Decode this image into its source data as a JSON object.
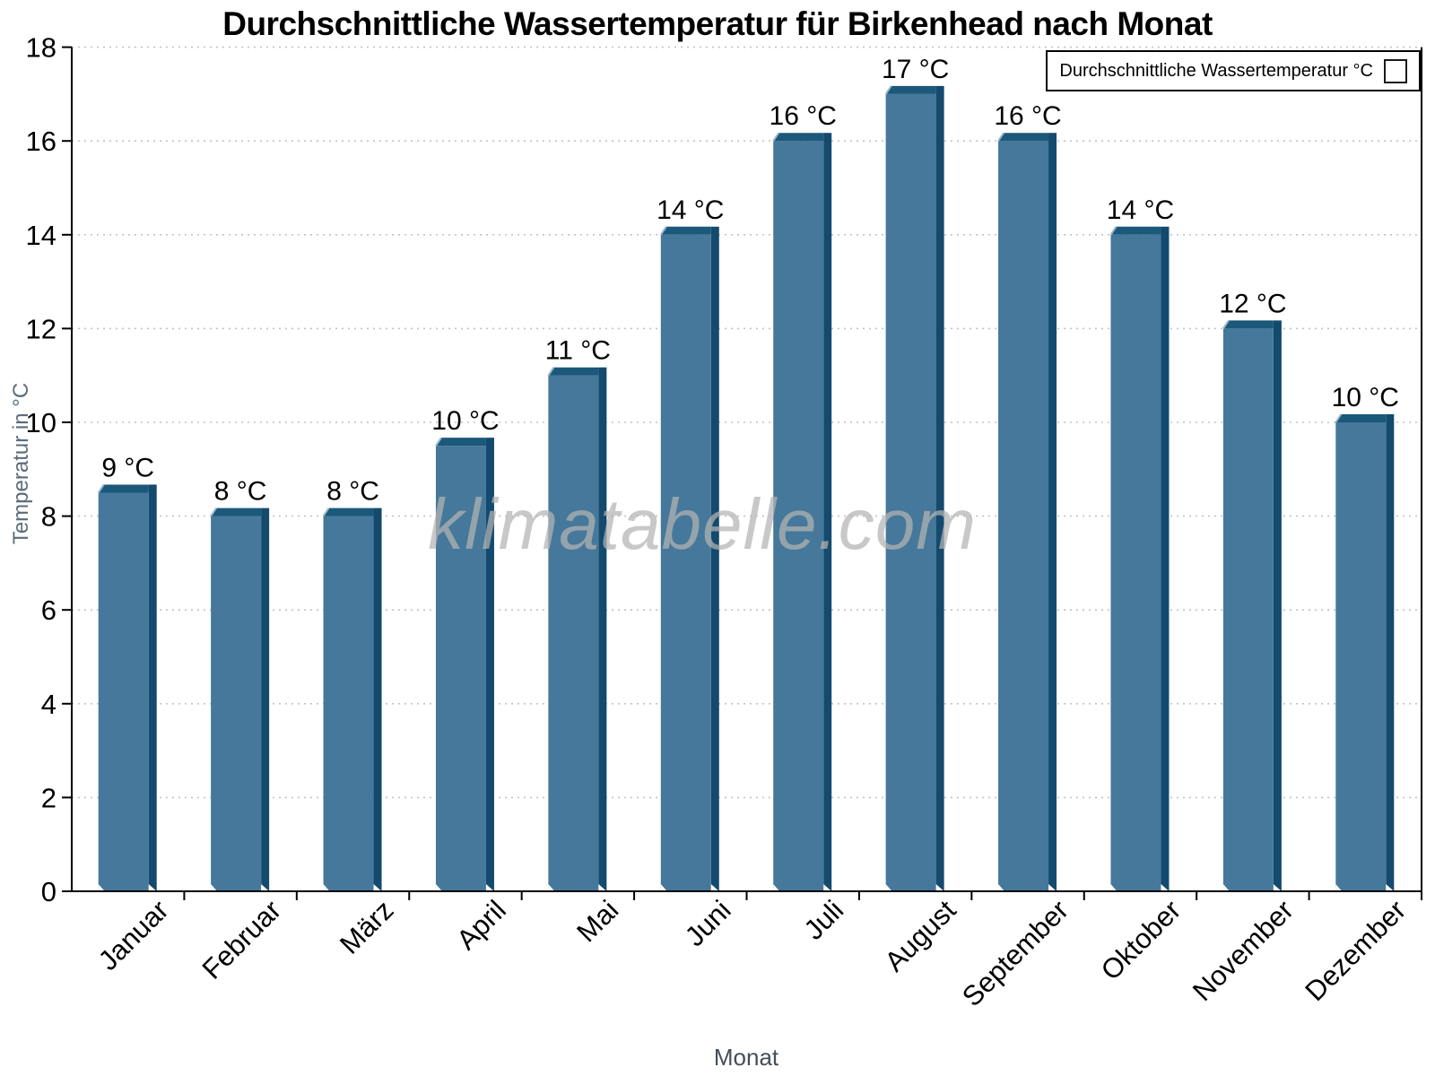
{
  "title": "Durchschnittliche Wassertemperatur für Birkenhead nach Monat",
  "legend": {
    "label": "Durchschnittliche Wassertemperatur °C"
  },
  "watermark": "klimatabelle.com",
  "chart_data": {
    "type": "bar",
    "title": "Durchschnittliche Wassertemperatur für Birkenhead nach Monat",
    "xlabel": "Monat",
    "ylabel": "Temperatur in °C",
    "categories": [
      "Januar",
      "Februar",
      "März",
      "April",
      "Mai",
      "Juni",
      "Juli",
      "August",
      "September",
      "Oktober",
      "November",
      "Dezember"
    ],
    "values": [
      8.5,
      8,
      8,
      9.5,
      11,
      14,
      16,
      17,
      16,
      14,
      12,
      10
    ],
    "value_labels": [
      "9 °C",
      "8 °C",
      "8 °C",
      "10 °C",
      "11 °C",
      "14 °C",
      "16 °C",
      "17 °C",
      "16 °C",
      "14 °C",
      "12 °C",
      "10 °C"
    ],
    "series_name": "Durchschnittliche Wassertemperatur °C",
    "ylim": [
      0,
      18
    ],
    "ytick_step": 2,
    "grid": "horizontal-dotted",
    "legend_position": "top-right",
    "colors": {
      "bar_face": "#45789A",
      "bar_side": "#134A6E",
      "bar_top": "#1B587A",
      "bar_bevel": "#9DB8CA",
      "grid_line": "#c3c3c3",
      "axis_line": "#000000",
      "tick_label": "#000000",
      "value_label": "#000000",
      "y_axis_title": "#5a6b7b",
      "x_axis_title": "#454e58",
      "watermark": "#b4b4b4"
    }
  }
}
